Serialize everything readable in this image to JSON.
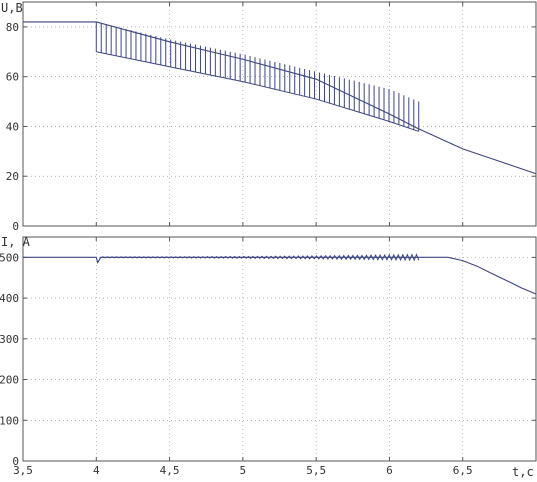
{
  "colors": {
    "trace": "#3c4680",
    "axis": "#555555",
    "grid": "#8a8a8a",
    "background": "#ffffff"
  },
  "chart_data": [
    {
      "type": "line",
      "ylabel": "U,B",
      "xlim": [
        3.5,
        7.0
      ],
      "ylim": [
        0,
        90
      ],
      "yticks": [
        0,
        20,
        40,
        60,
        80
      ],
      "ytick_labels": [
        "0",
        "20",
        "40",
        "60",
        "80"
      ],
      "grid": "dotted",
      "series": [
        {
          "points": [
            [
              3.5,
              82
            ],
            [
              4.0,
              82
            ],
            [
              4.0,
              82
            ],
            [
              4.5,
              74
            ],
            [
              5.0,
              67
            ],
            [
              5.5,
              59
            ],
            [
              6.0,
              45
            ],
            [
              6.2,
              39
            ],
            [
              6.5,
              31
            ],
            [
              6.8,
              25
            ],
            [
              7.0,
              21
            ]
          ]
        }
      ],
      "ripple": {
        "x_start": 4.0,
        "x_end": 6.2,
        "pulses": 66,
        "upper": [
          [
            4.0,
            82
          ],
          [
            4.5,
            75
          ],
          [
            5.0,
            69
          ],
          [
            5.5,
            62
          ],
          [
            6.0,
            55
          ],
          [
            6.2,
            50
          ]
        ],
        "lower": [
          [
            4.0,
            70
          ],
          [
            4.5,
            64
          ],
          [
            5.0,
            58
          ],
          [
            5.5,
            51
          ],
          [
            6.0,
            42
          ],
          [
            6.2,
            38
          ]
        ]
      }
    },
    {
      "type": "line",
      "ylabel": "I, A",
      "xlim": [
        3.5,
        7.0
      ],
      "ylim": [
        0,
        550
      ],
      "yticks": [
        0,
        100,
        200,
        300,
        400,
        500
      ],
      "ytick_labels": [
        "0",
        "100",
        "200",
        "300",
        "400",
        "500"
      ],
      "xticks": [
        3.5,
        4,
        4.5,
        5,
        5.5,
        6,
        6.5
      ],
      "xtick_labels": [
        "3,5",
        "4",
        "4,5",
        "5",
        "5,5",
        "6",
        "6,5"
      ],
      "xlabel": "t,c",
      "grid": "dotted",
      "series": [
        {
          "points": [
            [
              3.5,
              500
            ],
            [
              4.0,
              500
            ],
            [
              4.01,
              487
            ],
            [
              4.03,
              500
            ],
            [
              6.2,
              500
            ],
            [
              6.4,
              500
            ],
            [
              6.5,
              492
            ],
            [
              6.6,
              478
            ],
            [
              6.7,
              460
            ],
            [
              6.8,
              443
            ],
            [
              6.9,
              425
            ],
            [
              7.0,
              410
            ]
          ]
        }
      ],
      "ripple": {
        "x_start": 4.03,
        "x_end": 6.2,
        "cycles": 70,
        "amp_start": 2.5,
        "amp_end": 14
      }
    }
  ]
}
